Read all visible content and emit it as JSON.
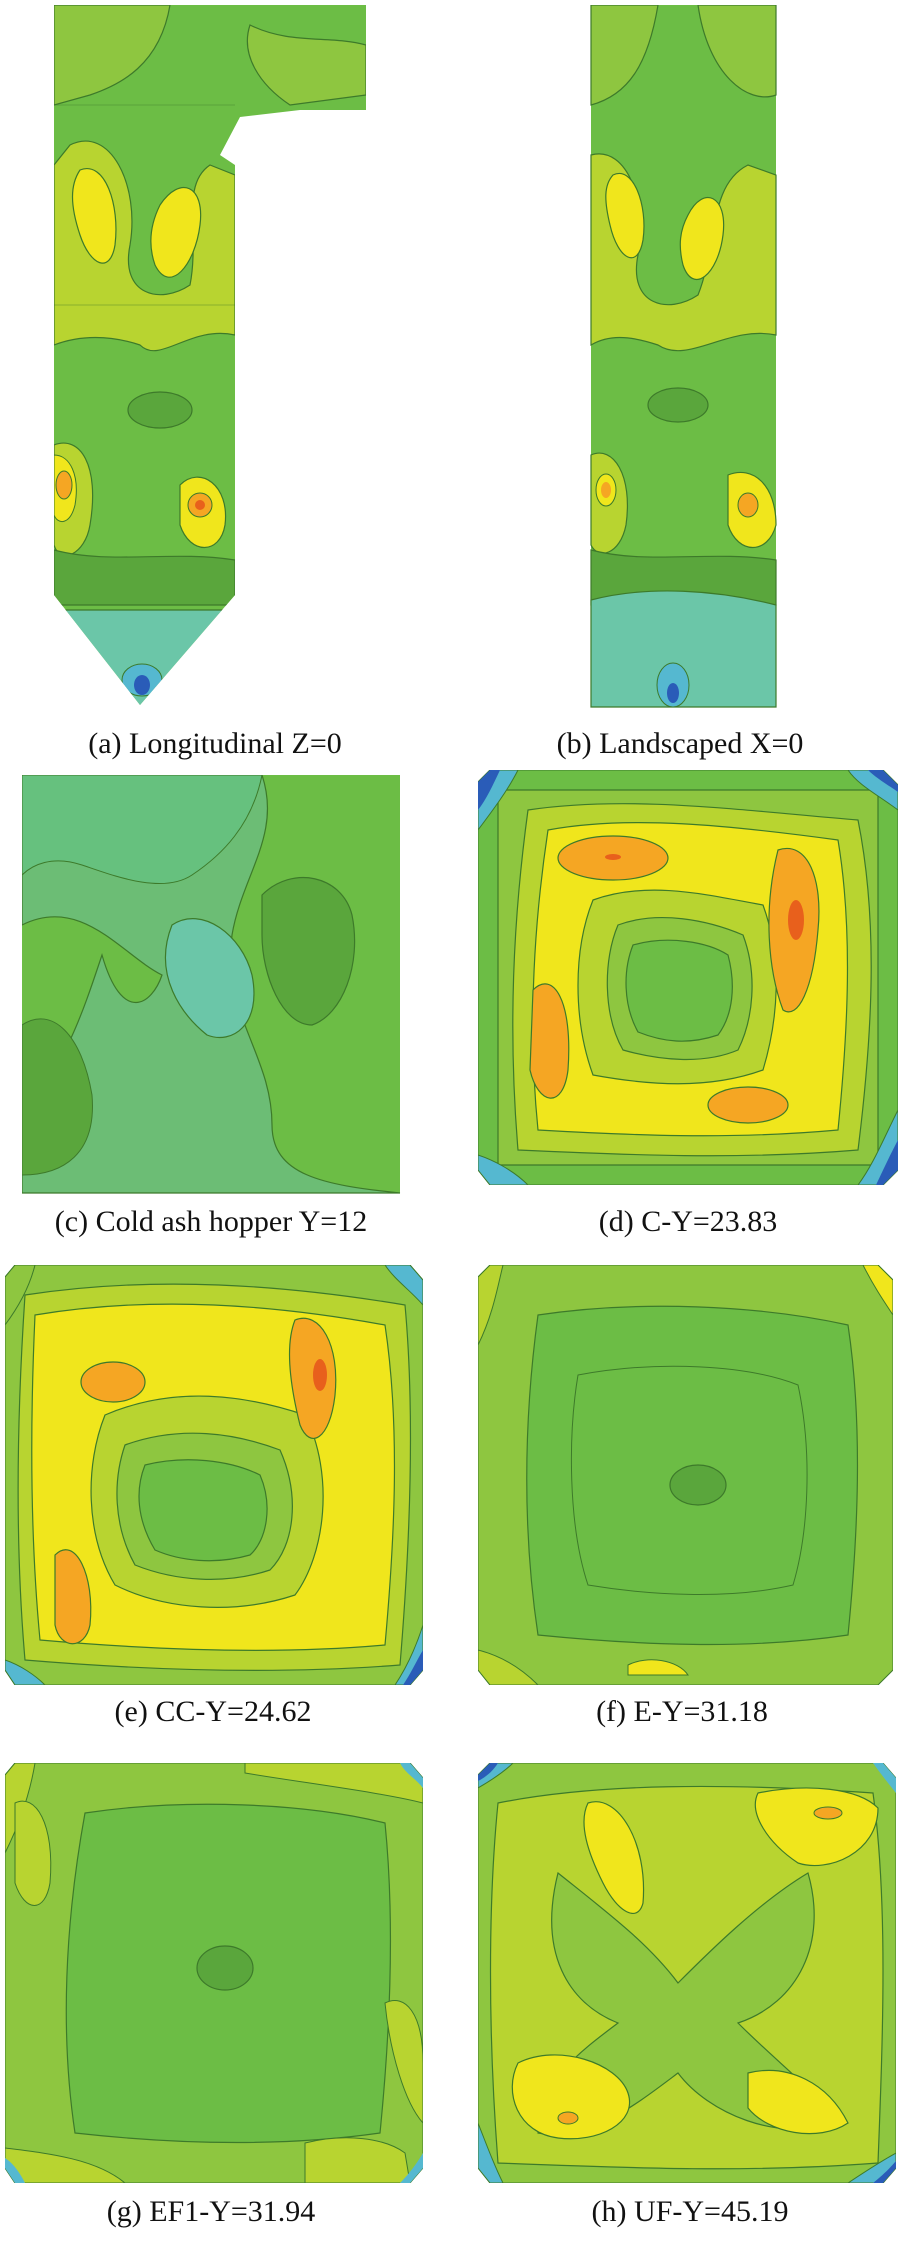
{
  "colors": {
    "green_base": "#6cbd45",
    "green_dark": "#5aa63c",
    "green_light": "#8ec640",
    "yellow_green": "#b8d430",
    "yellow": "#f0e61c",
    "orange": "#f5a623",
    "red_orange": "#e8601c",
    "teal": "#6bc6a8",
    "cyan": "#55b8d0",
    "blue": "#2a5cb8",
    "contour_line": "#3d7a2a"
  },
  "captions": {
    "a": "(a) Longitudinal Z=0",
    "b": "(b) Landscaped X=0",
    "c": "(c) Cold ash hopper Y=12",
    "d": "(d) C-Y=23.83",
    "e": "(e) CC-Y=24.62",
    "f": "(f) E-Y=31.18",
    "g": "(g) EF1-Y=31.94",
    "h": "(h) UF-Y=45.19"
  }
}
